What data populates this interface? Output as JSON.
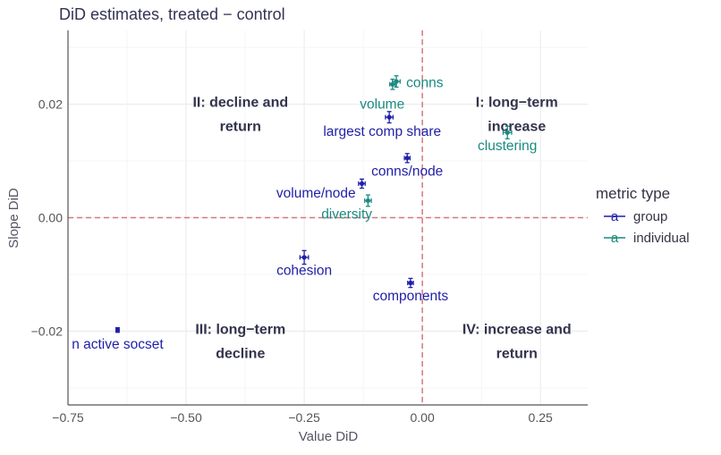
{
  "chart_data": {
    "type": "scatter",
    "title": "DiD estimates, treated − control",
    "xlabel": "Value DiD",
    "ylabel": "Slope DiD",
    "xlim": [
      -0.75,
      0.35
    ],
    "ylim": [
      -0.033,
      0.033
    ],
    "x_ticks": [
      -0.75,
      -0.5,
      -0.25,
      0.0,
      0.25
    ],
    "x_tick_labels": [
      "−0.75",
      "−0.50",
      "−0.25",
      "0.00",
      "0.25"
    ],
    "y_ticks": [
      -0.02,
      0.0,
      0.02
    ],
    "y_tick_labels": [
      "−0.02",
      "0.00",
      "0.02"
    ],
    "grid": true,
    "reference_lines": {
      "x": 0.0,
      "y": 0.0,
      "color": "#d9777a",
      "style": "dashed"
    },
    "legend": {
      "title": "metric type",
      "placement": "right",
      "key_glyph": "a",
      "entries": [
        {
          "label": "group",
          "color": "#1f1fa8"
        },
        {
          "label": "individual",
          "color": "#1a8a80"
        }
      ]
    },
    "quadrant_labels": [
      {
        "lines": [
          "I: long−term",
          "increase"
        ],
        "x": 0.2,
        "y": 0.0195
      },
      {
        "lines": [
          "II: decline and",
          "return"
        ],
        "x": -0.385,
        "y": 0.0195
      },
      {
        "lines": [
          "III: long−term",
          "decline"
        ],
        "x": -0.385,
        "y": -0.0205
      },
      {
        "lines": [
          "IV: increase and",
          "return"
        ],
        "x": 0.2,
        "y": -0.0205
      }
    ],
    "points": [
      {
        "label": "conns",
        "type": "individual",
        "x": -0.055,
        "y": 0.024,
        "xerr": 0.008,
        "yerr": 0.001,
        "label_x": 0.005,
        "label_y": 0.0238
      },
      {
        "label": "volume",
        "type": "individual",
        "x": -0.063,
        "y": 0.0235,
        "xerr": 0.006,
        "yerr": 0.0009,
        "label_x": -0.085,
        "label_y": 0.02
      },
      {
        "label": "largest comp share",
        "type": "group",
        "x": -0.07,
        "y": 0.0177,
        "xerr": 0.008,
        "yerr": 0.001,
        "label_x": -0.085,
        "label_y": 0.0152
      },
      {
        "label": "clustering",
        "type": "individual",
        "x": 0.18,
        "y": 0.015,
        "xerr": 0.009,
        "yerr": 0.0011,
        "label_x": 0.18,
        "label_y": 0.0127
      },
      {
        "label": "conns/node",
        "type": "group",
        "x": -0.032,
        "y": 0.0105,
        "xerr": 0.006,
        "yerr": 0.0008,
        "label_x": -0.032,
        "label_y": 0.0082
      },
      {
        "label": "volume/node",
        "type": "group",
        "x": -0.128,
        "y": 0.006,
        "xerr": 0.007,
        "yerr": 0.0008,
        "label_x": -0.225,
        "label_y": 0.0043
      },
      {
        "label": "diversity",
        "type": "individual",
        "x": -0.115,
        "y": 0.003,
        "xerr": 0.007,
        "yerr": 0.001,
        "label_x": -0.16,
        "label_y": 0.0006
      },
      {
        "label": "cohesion",
        "type": "group",
        "x": -0.25,
        "y": -0.007,
        "xerr": 0.009,
        "yerr": 0.0012,
        "label_x": -0.25,
        "label_y": -0.0093
      },
      {
        "label": "components",
        "type": "group",
        "x": -0.025,
        "y": -0.0115,
        "xerr": 0.006,
        "yerr": 0.0008,
        "label_x": -0.025,
        "label_y": -0.0138
      },
      {
        "label": "n active socset",
        "type": "group",
        "x": -0.645,
        "y": -0.0198,
        "xerr": 0.003,
        "yerr": 0.0004,
        "label_x": -0.645,
        "label_y": -0.0223
      }
    ]
  }
}
